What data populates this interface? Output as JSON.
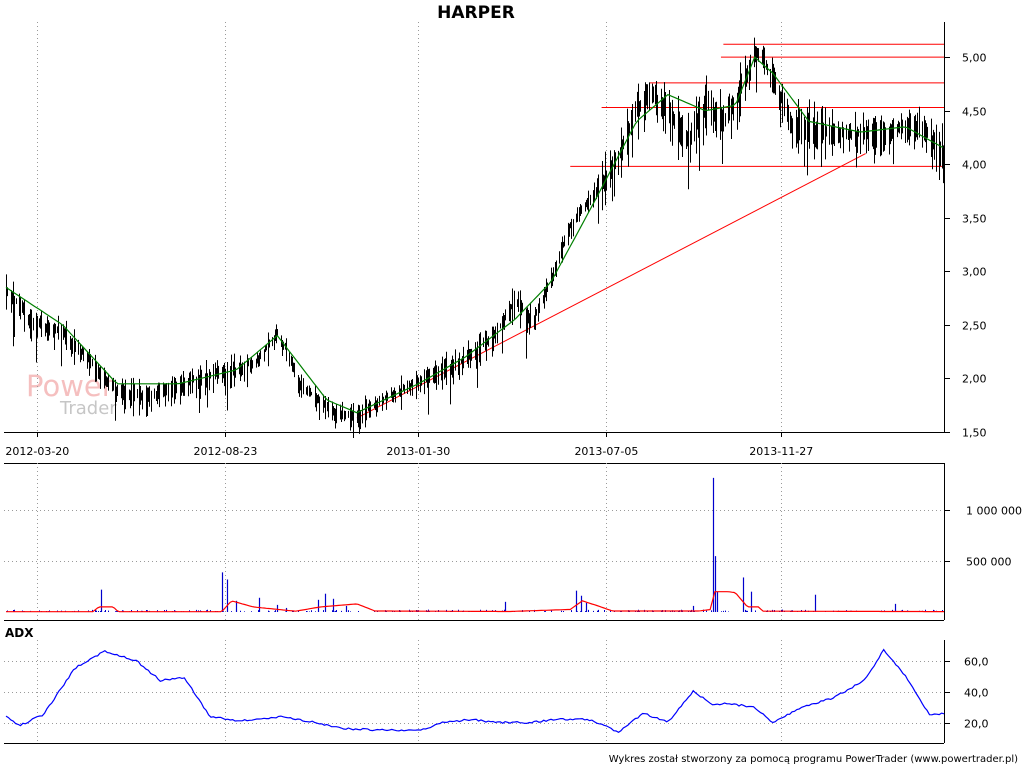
{
  "chart_data": [
    {
      "type": "candlestick",
      "title": "HARPER",
      "ylim": [
        1.5,
        5.3
      ],
      "y_ticks": [
        "1,50",
        "2,00",
        "2,50",
        "3,00",
        "3,50",
        "4,00",
        "4,50",
        "5,00"
      ],
      "y_tick_values": [
        1.5,
        2.0,
        2.5,
        3.0,
        3.5,
        4.0,
        4.5,
        5.0
      ],
      "x_tick_labels": [
        "2012-03-20",
        "2012-08-23",
        "2013-01-30",
        "2013-07-05",
        "2013-11-27"
      ],
      "x_tick_dates": [
        "2012-03-20",
        "2012-08-23",
        "2013-01-30",
        "2013-07-05",
        "2013-11-27"
      ],
      "x_range": [
        "2012-02-23",
        "2014-04-11"
      ],
      "close_colors": {
        "price_bar": "#000000",
        "moving_average": "#008000",
        "trendline": "#ff0000"
      },
      "price_anchors": {
        "dates": [
          "2012-02-23",
          "2012-03-15",
          "2012-04-10",
          "2012-05-05",
          "2012-05-25",
          "2012-06-20",
          "2012-07-15",
          "2012-08-10",
          "2012-09-01",
          "2012-09-20",
          "2012-10-05",
          "2012-10-25",
          "2012-11-15",
          "2012-12-05",
          "2013-01-05",
          "2013-02-10",
          "2013-03-10",
          "2013-04-05",
          "2013-04-20",
          "2013-05-05",
          "2013-05-20",
          "2013-06-05",
          "2013-06-25",
          "2013-07-15",
          "2013-07-30",
          "2013-08-10",
          "2013-08-25",
          "2013-09-10",
          "2013-09-25",
          "2013-10-10",
          "2013-10-20",
          "2013-11-05",
          "2013-11-20",
          "2013-12-05",
          "2014-01-01",
          "2014-02-01",
          "2014-03-01",
          "2014-03-20",
          "2014-04-11"
        ],
        "values": [
          2.85,
          2.55,
          2.45,
          2.15,
          1.9,
          1.85,
          1.95,
          2.05,
          2.1,
          2.2,
          2.45,
          1.95,
          1.75,
          1.65,
          1.85,
          2.05,
          2.2,
          2.45,
          2.75,
          2.55,
          2.95,
          3.45,
          3.75,
          4.1,
          4.55,
          4.7,
          4.55,
          4.25,
          4.6,
          4.45,
          4.6,
          5.1,
          4.85,
          4.4,
          4.35,
          4.3,
          4.35,
          4.4,
          4.15
        ]
      },
      "moving_average_anchors": {
        "dates": [
          "2012-02-23",
          "2012-04-10",
          "2012-05-25",
          "2012-07-15",
          "2012-09-01",
          "2012-10-05",
          "2012-11-15",
          "2012-12-10",
          "2013-01-30",
          "2013-03-10",
          "2013-04-20",
          "2013-05-20",
          "2013-06-25",
          "2013-07-30",
          "2013-08-25",
          "2013-09-25",
          "2013-10-20",
          "2013-11-05",
          "2013-11-20",
          "2013-12-20",
          "2014-02-01",
          "2014-03-10",
          "2014-04-11"
        ],
        "values": [
          2.85,
          2.5,
          1.95,
          1.95,
          2.08,
          2.4,
          1.8,
          1.68,
          1.95,
          2.2,
          2.55,
          2.9,
          3.65,
          4.4,
          4.65,
          4.5,
          4.55,
          5.0,
          4.85,
          4.4,
          4.3,
          4.35,
          4.15
        ]
      },
      "horizontal_lines": [
        {
          "from": "2013-10-10",
          "to": "2014-04-11",
          "y": 5.12
        },
        {
          "from": "2013-10-08",
          "to": "2014-04-11",
          "y": 5.0
        },
        {
          "from": "2013-08-10",
          "to": "2014-04-11",
          "y": 4.76
        },
        {
          "from": "2013-07-01",
          "to": "2014-04-11",
          "y": 4.53
        },
        {
          "from": "2013-06-05",
          "to": "2014-04-11",
          "y": 3.98
        }
      ],
      "trendline": {
        "from": {
          "date": "2012-12-10",
          "y": 1.63
        },
        "to": {
          "date": "2014-02-05",
          "y": 4.1
        }
      }
    },
    {
      "type": "bar",
      "title": "",
      "ylim": [
        0,
        1250000
      ],
      "y_ticks": [
        "500 000",
        "1 000 000"
      ],
      "y_tick_values": [
        500000,
        1000000
      ],
      "baseline_level": 5000,
      "spikes": {
        "dates": [
          "2012-05-12",
          "2012-08-20",
          "2012-08-24",
          "2012-09-01",
          "2012-09-20",
          "2012-10-05",
          "2012-10-12",
          "2012-11-08",
          "2012-11-14",
          "2012-11-20",
          "2012-12-01",
          "2013-04-12",
          "2013-06-10",
          "2013-06-14",
          "2013-06-18",
          "2013-09-15",
          "2013-10-01",
          "2013-10-03",
          "2013-10-05",
          "2013-10-26",
          "2013-11-02",
          "2013-12-25",
          "2014-03-01"
        ],
        "values": [
          220000,
          390000,
          320000,
          110000,
          140000,
          70000,
          40000,
          120000,
          180000,
          130000,
          60000,
          100000,
          210000,
          160000,
          90000,
          60000,
          1320000,
          550000,
          200000,
          340000,
          200000,
          170000,
          80000
        ]
      },
      "moving_average_anchors": {
        "dates": [
          "2012-02-23",
          "2012-05-05",
          "2012-05-10",
          "2012-05-22",
          "2012-05-26",
          "2012-08-20",
          "2012-08-28",
          "2012-09-15",
          "2012-10-10",
          "2012-10-20",
          "2012-11-10",
          "2012-12-10",
          "2012-12-25",
          "2013-04-15",
          "2013-06-05",
          "2013-06-15",
          "2013-06-28",
          "2013-07-10",
          "2013-09-20",
          "2013-09-30",
          "2013-10-02",
          "2013-10-14",
          "2013-10-20",
          "2013-10-30",
          "2013-11-08",
          "2013-11-12",
          "2014-04-11"
        ],
        "values": [
          3000,
          3000,
          50000,
          50000,
          3000,
          3000,
          110000,
          50000,
          20000,
          8000,
          50000,
          80000,
          10000,
          5000,
          25000,
          110000,
          60000,
          10000,
          10000,
          25000,
          200000,
          200000,
          190000,
          50000,
          50000,
          8000,
          4000
        ]
      },
      "colors": {
        "volume_bar": "#0000cc",
        "moving_average": "#ff0000"
      }
    },
    {
      "type": "line",
      "title": "ADX",
      "ylim": [
        10,
        70
      ],
      "y_ticks": [
        "20,0",
        "40,0",
        "60,0"
      ],
      "y_tick_values": [
        20,
        40,
        60
      ],
      "anchors": {
        "dates": [
          "2012-02-23",
          "2012-03-05",
          "2012-03-25",
          "2012-04-20",
          "2012-05-15",
          "2012-06-10",
          "2012-06-30",
          "2012-07-20",
          "2012-08-10",
          "2012-09-01",
          "2012-09-20",
          "2012-10-10",
          "2012-11-05",
          "2012-12-01",
          "2013-01-01",
          "2013-02-01",
          "2013-02-20",
          "2013-03-15",
          "2013-04-05",
          "2013-05-01",
          "2013-05-25",
          "2013-06-20",
          "2013-07-15",
          "2013-08-05",
          "2013-08-25",
          "2013-09-15",
          "2013-10-01",
          "2013-10-15",
          "2013-11-05",
          "2013-11-20",
          "2013-12-15",
          "2014-01-10",
          "2014-02-05",
          "2014-02-20",
          "2014-03-10",
          "2014-03-30",
          "2014-04-11"
        ],
        "values": [
          24,
          18,
          25,
          55,
          66,
          60,
          47,
          49,
          24,
          21,
          22,
          24,
          20,
          16,
          15,
          15,
          20,
          22,
          20,
          20,
          22,
          22,
          14,
          26,
          20,
          40,
          32,
          32,
          30,
          20,
          30,
          36,
          48,
          67,
          50,
          25,
          26
        ]
      },
      "colors": {
        "line": "#0000ff"
      }
    }
  ],
  "branding": {
    "watermark_main": "Power",
    "watermark_sub": "Trader"
  },
  "footer": "Wykres został stworzony za pomocą programu PowerTrader (www.powertrader.pl)"
}
